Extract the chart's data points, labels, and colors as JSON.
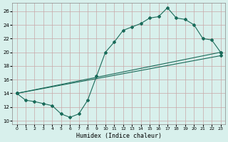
{
  "background_color": "#d8f0ec",
  "grid_color": "#c8a8a8",
  "line_color": "#1a6b5a",
  "xlabel": "Humidex (Indice chaleur)",
  "xlim": [
    -0.5,
    23.5
  ],
  "ylim": [
    9.5,
    27.2
  ],
  "xticks": [
    0,
    1,
    2,
    3,
    4,
    5,
    6,
    7,
    8,
    9,
    10,
    11,
    12,
    13,
    14,
    15,
    16,
    17,
    18,
    19,
    20,
    21,
    22,
    23
  ],
  "yticks": [
    10,
    12,
    14,
    16,
    18,
    20,
    22,
    24,
    26
  ],
  "line1_x": [
    0,
    1,
    2,
    3,
    4,
    5,
    6,
    7,
    8,
    9,
    10,
    11,
    12,
    13,
    14,
    15,
    16,
    17,
    18,
    19,
    20,
    21,
    22,
    23
  ],
  "line1_y": [
    14.0,
    13.0,
    12.8,
    12.5,
    12.2,
    11.0,
    10.5,
    11.0,
    13.0,
    16.5,
    20.0,
    21.5,
    23.2,
    23.7,
    24.2,
    25.0,
    25.2,
    26.5,
    25.0,
    24.8,
    24.0,
    22.0,
    21.8,
    20.0
  ],
  "line2_x": [
    0,
    23
  ],
  "line2_y": [
    14.0,
    20.0
  ],
  "line3_x": [
    0,
    23
  ],
  "line3_y": [
    14.0,
    19.5
  ]
}
